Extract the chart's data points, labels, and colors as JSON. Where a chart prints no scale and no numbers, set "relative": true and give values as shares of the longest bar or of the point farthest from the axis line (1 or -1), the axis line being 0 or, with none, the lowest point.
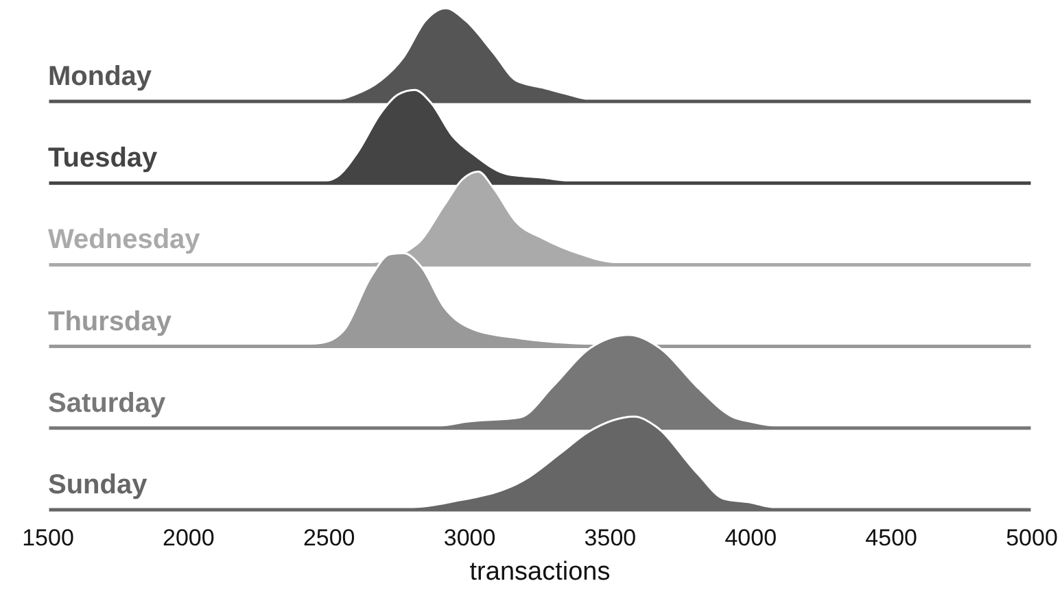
{
  "chart_data": [
    {
      "type": "area",
      "relative": true,
      "xlim": [
        1500,
        5000
      ],
      "tick_labels": false,
      "series": [
        {
          "name": "Monday",
          "color": "#555555",
          "x": [
            1500,
            2540,
            2586,
            2683,
            2765,
            2842,
            2915,
            2987,
            3084,
            3166,
            3262,
            3359,
            3420,
            5000
          ],
          "values": [
            0,
            0,
            0.04,
            0.2,
            0.46,
            0.86,
            1,
            0.86,
            0.51,
            0.2,
            0.12,
            0.04,
            0,
            0
          ]
        }
      ]
    },
    {
      "type": "area",
      "relative": true,
      "xlim": [
        1500,
        5000
      ],
      "tick_labels": false,
      "series": [
        {
          "name": "Tuesday",
          "color": "#444444",
          "x": [
            1500,
            2490,
            2528,
            2601,
            2683,
            2746,
            2804,
            2862,
            2939,
            3021,
            3132,
            3262,
            3350,
            5000
          ],
          "values": [
            0,
            0,
            0.04,
            0.31,
            0.74,
            0.95,
            1,
            0.86,
            0.49,
            0.27,
            0.07,
            0.03,
            0,
            0
          ]
        }
      ]
    },
    {
      "type": "area",
      "relative": true,
      "xlim": [
        1500,
        5000
      ],
      "tick_labels": false,
      "series": [
        {
          "name": "Wednesday",
          "color": "#aaaaaa",
          "x": [
            1500,
            2650,
            2813,
            2910,
            2973,
            3031,
            3084,
            3166,
            3262,
            3393,
            3518,
            5000
          ],
          "values": [
            0,
            0,
            0.2,
            0.63,
            0.91,
            1,
            0.82,
            0.44,
            0.26,
            0.09,
            0,
            0
          ]
        }
      ]
    },
    {
      "type": "area",
      "relative": true,
      "xlim": [
        1500,
        5000
      ],
      "tick_labels": false,
      "series": [
        {
          "name": "Thursday",
          "color": "#999999",
          "x": [
            1500,
            2430,
            2475,
            2553,
            2649,
            2717,
            2765,
            2828,
            2910,
            3021,
            3180,
            3345,
            3420,
            5000
          ],
          "values": [
            0,
            0,
            0.01,
            0.15,
            0.74,
            0.99,
            1,
            0.85,
            0.4,
            0.15,
            0.06,
            0.01,
            0,
            0
          ]
        }
      ]
    },
    {
      "type": "area",
      "relative": true,
      "xlim": [
        1500,
        5000
      ],
      "tick_labels": false,
      "series": [
        {
          "name": "Saturday",
          "color": "#777777",
          "x": [
            1500,
            2900,
            2987,
            3180,
            3296,
            3422,
            3567,
            3683,
            3808,
            3938,
            4001,
            4080,
            5000
          ],
          "values": [
            0,
            0,
            0.04,
            0.09,
            0.43,
            0.84,
            1,
            0.84,
            0.43,
            0.09,
            0.04,
            0,
            0
          ]
        }
      ]
    },
    {
      "type": "area",
      "relative": true,
      "xlabel": "transactions",
      "xlim": [
        1500,
        5000
      ],
      "xticks": [
        1500,
        2000,
        2500,
        3000,
        3500,
        4000,
        4500,
        5000
      ],
      "tick_labels": "x",
      "series": [
        {
          "name": "Sunday",
          "color": "#666666",
          "x": [
            1500,
            2800,
            2939,
            3200,
            3325,
            3422,
            3586,
            3663,
            3808,
            3905,
            4001,
            4080,
            5000
          ],
          "values": [
            0,
            0,
            0.06,
            0.31,
            0.6,
            0.83,
            1,
            0.89,
            0.38,
            0.09,
            0.05,
            0,
            0
          ]
        }
      ]
    }
  ]
}
